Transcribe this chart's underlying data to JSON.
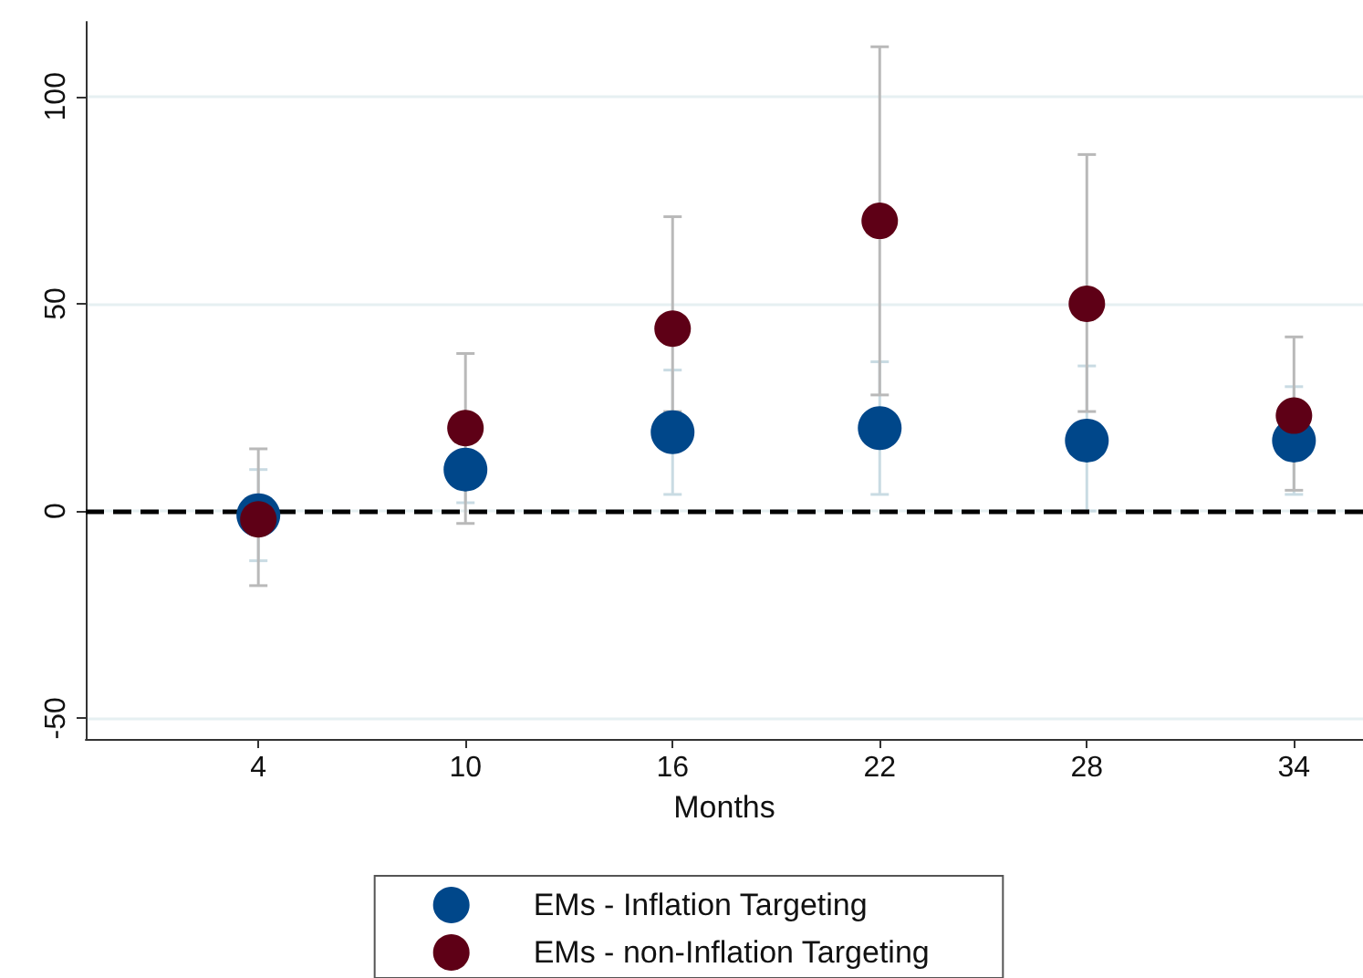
{
  "chart_data": {
    "type": "scatter",
    "xlabel": "Months",
    "x": [
      4,
      10,
      16,
      22,
      28,
      34
    ],
    "series": [
      {
        "name": "EMs - Inflation Targeting",
        "color": "#00478a",
        "values": [
          -1,
          10,
          19,
          20,
          17,
          17
        ],
        "errors": [
          [
            -12,
            10
          ],
          [
            2,
            10
          ],
          [
            4,
            34
          ],
          [
            4,
            36
          ],
          [
            0,
            35
          ],
          [
            4,
            30
          ]
        ]
      },
      {
        "name": "EMs - non-Inflation Targeting",
        "color": "#5e0016",
        "values": [
          -2,
          20,
          44,
          70,
          50,
          23
        ],
        "errors": [
          [
            -18,
            15
          ],
          [
            -3,
            38
          ],
          [
            24,
            71
          ],
          [
            28,
            112
          ],
          [
            24,
            86
          ],
          [
            5,
            42
          ]
        ]
      }
    ],
    "xlim": [
      -1,
      36
    ],
    "xticks": [
      4,
      10,
      16,
      22,
      28,
      34
    ],
    "ylim": [
      -55,
      118
    ],
    "yticks": [
      -50,
      0,
      50,
      100
    ],
    "grid": "y",
    "legend": "bottom",
    "marker": "circle",
    "ref_lines": [
      {
        "axis": "y",
        "value": 0,
        "color": "#000000",
        "line_style": "dashed"
      }
    ]
  }
}
